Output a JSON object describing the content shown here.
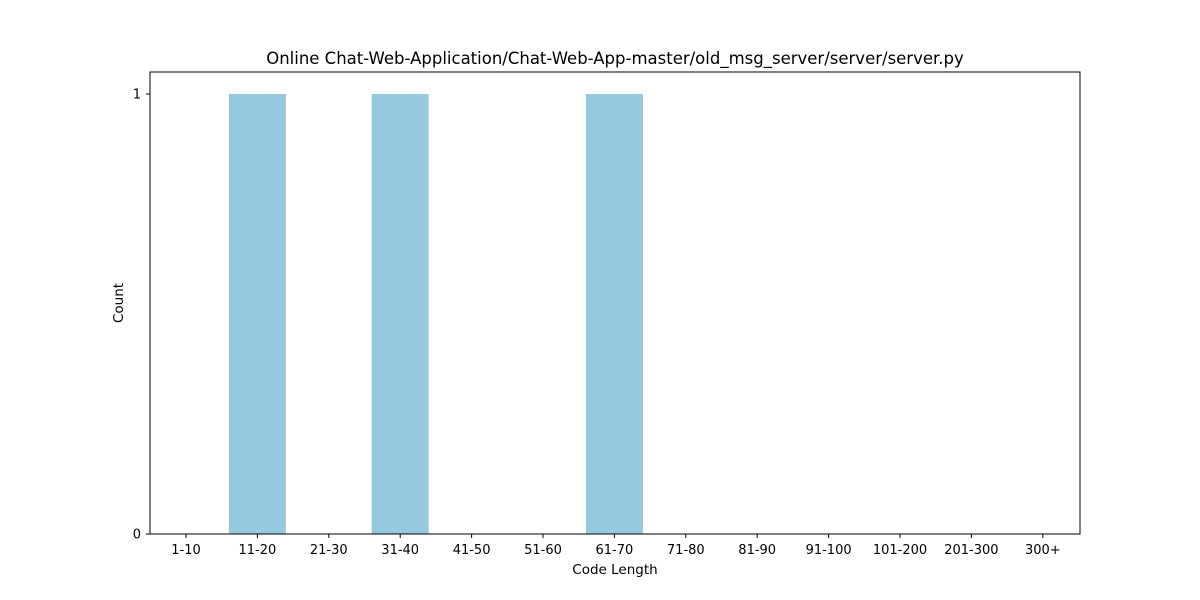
{
  "chart_data": {
    "type": "bar",
    "title": "Online Chat-Web-Application/Chat-Web-App-master/old_msg_server/server/server.py",
    "xlabel": "Code Length",
    "ylabel": "Count",
    "categories": [
      "1-10",
      "11-20",
      "21-30",
      "31-40",
      "41-50",
      "51-60",
      "61-70",
      "71-80",
      "81-90",
      "91-100",
      "101-200",
      "201-300",
      "300+"
    ],
    "values": [
      0,
      1,
      0,
      1,
      0,
      0,
      1,
      0,
      0,
      0,
      0,
      0,
      0
    ],
    "ylim": [
      0,
      1.05
    ],
    "yticks": [
      0,
      1
    ],
    "bar_color": "#95c9de",
    "grid": false,
    "legend": "none"
  }
}
